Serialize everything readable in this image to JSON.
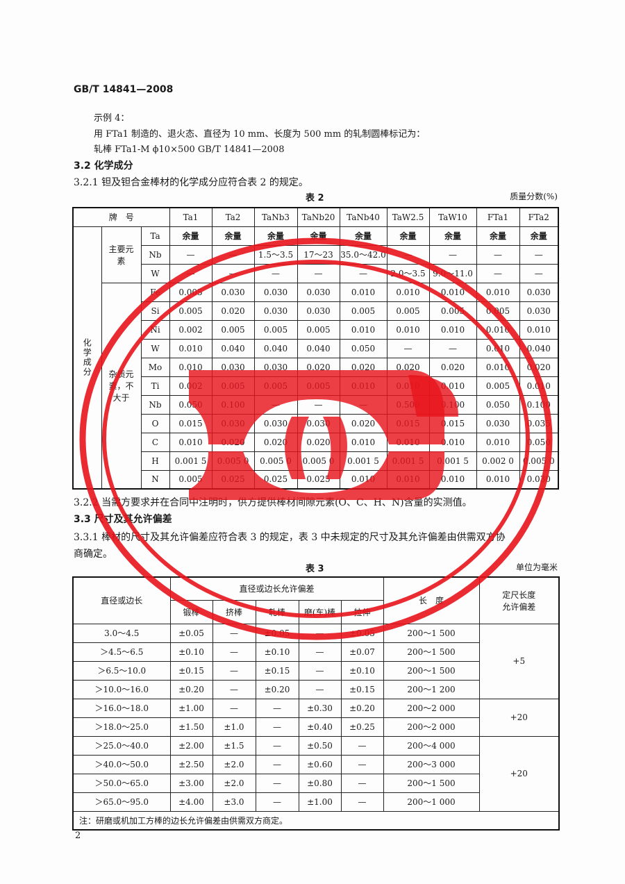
{
  "header": {
    "standard": "GB/T 14841—2008"
  },
  "example": {
    "label": "示例 4：",
    "line1": "用 FTa1 制造的、退火态、直径为 10 mm、长度为 500 mm 的轧制圆棒标记为：",
    "line2": "轧棒 FTa1-M   ϕ10×500   GB/T 14841—2008"
  },
  "sec32": {
    "title": "3.2  化学成分",
    "p321": "3.2.1  钽及钽合金棒材的化学成分应符合表 2 的规定。"
  },
  "table2": {
    "caption": "表 2",
    "unit": "质量分数(%)",
    "brand_label": "牌　号",
    "grades": [
      "Ta1",
      "Ta2",
      "TaNb3",
      "TaNb20",
      "TaNb40",
      "TaW2.5",
      "TaW10",
      "FTa1",
      "FTa2"
    ],
    "group_label": "化学成分",
    "main_label": "主要元素",
    "impurity_label": "杂质元素，不大于",
    "main_rows": [
      {
        "el": "Ta",
        "v": [
          "余量",
          "余量",
          "余量",
          "余量",
          "余量",
          "余量",
          "余量",
          "余量",
          "余量"
        ]
      },
      {
        "el": "Nb",
        "v": [
          "—",
          "—",
          "1.5～3.5",
          "17～23",
          "35.0～42.0",
          "—",
          "—",
          "—",
          "—"
        ]
      },
      {
        "el": "W",
        "v": [
          "—",
          "—",
          "—",
          "—",
          "—",
          "2.0～3.5",
          "9.0～11.0",
          "—",
          "—"
        ]
      }
    ],
    "impurity_rows": [
      {
        "el": "Fe",
        "v": [
          "0.005",
          "0.030",
          "0.030",
          "0.030",
          "0.010",
          "0.010",
          "0.010",
          "0.010",
          "0.030"
        ]
      },
      {
        "el": "Si",
        "v": [
          "0.005",
          "0.020",
          "0.030",
          "0.030",
          "0.005",
          "0.005",
          "0.005",
          "0.005",
          "0.030"
        ]
      },
      {
        "el": "Ni",
        "v": [
          "0.002",
          "0.005",
          "0.005",
          "0.005",
          "0.010",
          "0.010",
          "0.010",
          "0.010",
          "0.010"
        ]
      },
      {
        "el": "W",
        "v": [
          "0.010",
          "0.040",
          "0.040",
          "0.040",
          "0.050",
          "—",
          "—",
          "0.010",
          "0.040"
        ]
      },
      {
        "el": "Mo",
        "v": [
          "0.010",
          "0.030",
          "0.030",
          "0.020",
          "0.020",
          "0.020",
          "0.020",
          "0.010",
          "0.020"
        ]
      },
      {
        "el": "Ti",
        "v": [
          "0.002",
          "0.005",
          "0.005",
          "0.005",
          "0.010",
          "0.010",
          "0.010",
          "0.005",
          "0.010"
        ]
      },
      {
        "el": "Nb",
        "v": [
          "0.050",
          "0.100",
          "—",
          "—",
          "—",
          "0.500",
          "0.100",
          "0.050",
          "0.100"
        ]
      },
      {
        "el": "O",
        "v": [
          "0.015",
          "0.030",
          "0.030",
          "0.030",
          "0.020",
          "0.015",
          "0.015",
          "0.030",
          "0.035"
        ]
      },
      {
        "el": "C",
        "v": [
          "0.010",
          "0.020",
          "0.020",
          "0.020",
          "0.010",
          "0.010",
          "0.010",
          "0.010",
          "0.050"
        ]
      },
      {
        "el": "H",
        "v": [
          "0.001 5",
          "0.005 0",
          "0.005 0",
          "0.005 0",
          "0.001 5",
          "0.001 5",
          "0.001 5",
          "0.002 0",
          "0.005 0"
        ]
      },
      {
        "el": "N",
        "v": [
          "0.005",
          "0.025",
          "0.025",
          "0.025",
          "0.010",
          "0.010",
          "0.010",
          "0.010",
          "0.030"
        ]
      }
    ]
  },
  "sec322": "3.2.2  当需方要求并在合同中注明时，供方提供棒材间隙元素(O、C、H、N)含量的实测值。",
  "sec33": {
    "title": "3.3  尺寸及其允许偏差",
    "p331a": "3.3.1  棒材的尺寸及其允许偏差应符合表 3 的规定，表 3 中未规定的尺寸及其允许偏差由供需双方协",
    "p331b": "商确定。"
  },
  "table3": {
    "caption": "表 3",
    "unit": "单位为毫米",
    "h_size": "直径或边长",
    "h_tol": "直径或边长允许偏差",
    "h_sub": [
      "锻棒",
      "挤棒",
      "轧棒",
      "磨(车)棒",
      "拉伸"
    ],
    "h_len": "长　度",
    "h_fix": "定尺长度允许偏差",
    "rows": [
      [
        "3.0～4.5",
        "±0.05",
        "—",
        "±0.05",
        "—",
        "±0.05",
        "200～1 500"
      ],
      [
        "＞4.5～6.5",
        "±0.10",
        "—",
        "±0.10",
        "—",
        "±0.07",
        "200～1 500"
      ],
      [
        "＞6.5～10.0",
        "±0.15",
        "—",
        "±0.15",
        "—",
        "±0.10",
        "200～1 500"
      ],
      [
        "＞10.0～16.0",
        "±0.20",
        "—",
        "±0.20",
        "—",
        "±0.15",
        "200～1 200"
      ],
      [
        "＞16.0～18.0",
        "±1.00",
        "—",
        "—",
        "±0.30",
        "±0.20",
        "200～2 000"
      ],
      [
        "＞18.0～25.0",
        "±1.50",
        "±1.0",
        "—",
        "±0.40",
        "±0.25",
        "200～2 000"
      ],
      [
        "＞25.0～40.0",
        "±2.00",
        "±1.5",
        "—",
        "±0.50",
        "—",
        "200～4 000"
      ],
      [
        "＞40.0～50.0",
        "±2.50",
        "±2.0",
        "—",
        "±0.60",
        "—",
        "200～3 000"
      ],
      [
        "＞50.0～65.0",
        "±3.00",
        "±2.0",
        "—",
        "±0.80",
        "—",
        "200～1 500"
      ],
      [
        "＞65.0～95.0",
        "±4.00",
        "±3.0",
        "—",
        "±1.00",
        "—",
        "200～1 000"
      ]
    ],
    "fixed": [
      "+5",
      "+20",
      "+20"
    ],
    "note": "注：研磨或机加工方棒的边长允许偏差由供需双方商定。"
  },
  "page_number": "2",
  "stamp": {
    "color": "#e8141c"
  }
}
